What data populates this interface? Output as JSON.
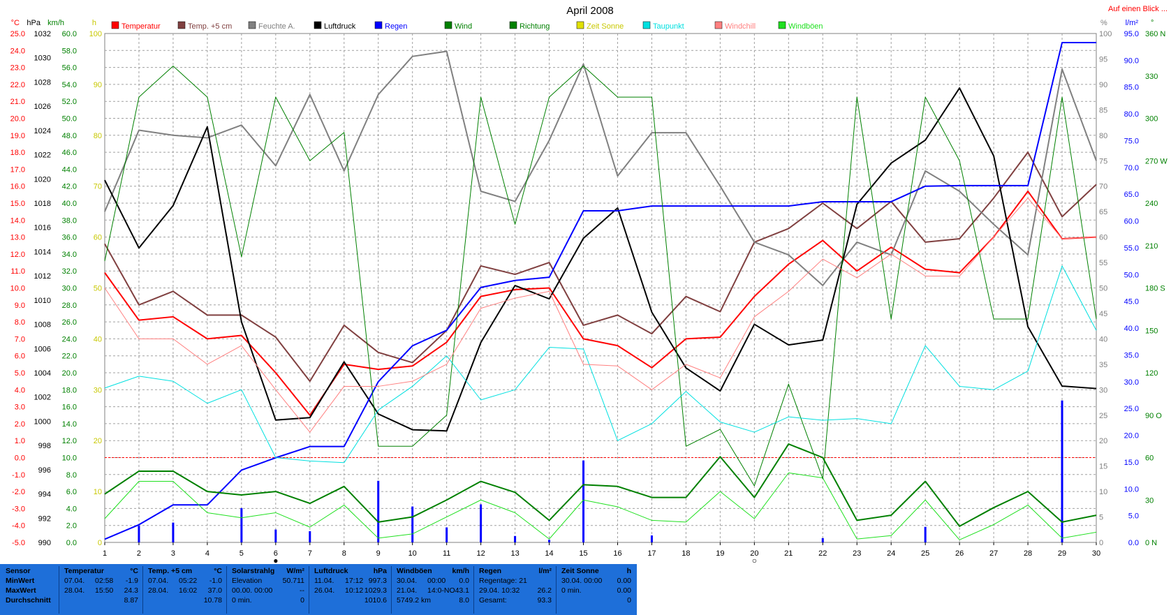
{
  "chart_data": {
    "type": "line",
    "title": "April 2008",
    "corner_link": "Auf einen Blick ...",
    "x": [
      1,
      2,
      3,
      4,
      5,
      6,
      7,
      8,
      9,
      10,
      11,
      12,
      13,
      14,
      15,
      16,
      17,
      18,
      19,
      20,
      21,
      22,
      23,
      24,
      25,
      26,
      27,
      28,
      29,
      30
    ],
    "axes": {
      "temp": {
        "unit": "°C",
        "color": "#ff0000",
        "ylim": [
          -5,
          25
        ],
        "ticks": [
          "25.0",
          "24.0",
          "23.0",
          "22.0",
          "21.0",
          "20.0",
          "19.0",
          "18.0",
          "17.0",
          "16.0",
          "15.0",
          "14.0",
          "13.0",
          "12.0",
          "11.0",
          "10.0",
          "9.0",
          "8.0",
          "7.0",
          "6.0",
          "5.0",
          "4.0",
          "3.0",
          "2.0",
          "1.0",
          "0.0",
          "-1.0",
          "-2.0",
          "-3.0",
          "-4.0",
          "-5.0"
        ]
      },
      "pressure": {
        "unit": "hPa",
        "color": "#000000",
        "ylim": [
          990,
          1032
        ],
        "ticks": [
          "1032",
          "1030",
          "1028",
          "1026",
          "1024",
          "1022",
          "1020",
          "1018",
          "1016",
          "1014",
          "1012",
          "1010",
          "1008",
          "1006",
          "1004",
          "1002",
          "1000",
          "998",
          "996",
          "994",
          "992",
          "990"
        ]
      },
      "wind": {
        "unit": "km/h",
        "color": "#008000",
        "ylim": [
          0,
          60
        ],
        "ticks": [
          "60.0",
          "58.0",
          "56.0",
          "54.0",
          "52.0",
          "50.0",
          "48.0",
          "46.0",
          "44.0",
          "42.0",
          "40.0",
          "38.0",
          "36.0",
          "34.0",
          "32.0",
          "30.0",
          "28.0",
          "26.0",
          "24.0",
          "22.0",
          "20.0",
          "18.0",
          "16.0",
          "14.0",
          "12.0",
          "10.0",
          "8.0",
          "6.0",
          "4.0",
          "2.0",
          "0.0"
        ]
      },
      "sun": {
        "unit": "h",
        "color": "#c8c800",
        "ylim": [
          0,
          100
        ],
        "ticks": [
          "100",
          "90",
          "80",
          "70",
          "60",
          "50",
          "40",
          "30",
          "20",
          "10",
          "0"
        ]
      },
      "humidity": {
        "unit": "%",
        "color": "#808080",
        "ylim": [
          0,
          100
        ],
        "ticks": [
          "100",
          "95",
          "90",
          "85",
          "80",
          "75",
          "70",
          "65",
          "60",
          "55",
          "50",
          "45",
          "40",
          "35",
          "30",
          "25",
          "20",
          "15",
          "10",
          "5",
          "0"
        ]
      },
      "rain": {
        "unit": "l/m²",
        "color": "#0000ff",
        "ylim": [
          0,
          95
        ],
        "ticks": [
          "95.0",
          "90.0",
          "85.0",
          "80.0",
          "75.0",
          "70.0",
          "65.0",
          "60.0",
          "55.0",
          "50.0",
          "45.0",
          "40.0",
          "35.0",
          "30.0",
          "25.0",
          "20.0",
          "15.0",
          "10.0",
          "5.0",
          "0.0"
        ]
      },
      "direction": {
        "unit": "°",
        "color": "#008000",
        "ylim": [
          0,
          360
        ],
        "ticks": [
          "360 N",
          "330",
          "300",
          "270 W",
          "240",
          "210",
          "180 S",
          "150",
          "120",
          "90 O",
          "60",
          "30",
          "0 N"
        ]
      }
    },
    "legend": [
      {
        "name": "Temperatur",
        "color": "#ff0000"
      },
      {
        "name": "Temp. +5 cm",
        "color": "#804040"
      },
      {
        "name": "Feuchte A.",
        "color": "#808080"
      },
      {
        "name": "Luftdruck",
        "color": "#000000"
      },
      {
        "name": "Regen",
        "color": "#0000ff"
      },
      {
        "name": "Wind",
        "color": "#008000"
      },
      {
        "name": "Richtung",
        "color": "#008000"
      },
      {
        "name": "Zeit Sonne",
        "color": "#e0e000"
      },
      {
        "name": "Taupunkt",
        "color": "#00e0e0"
      },
      {
        "name": "Windchill",
        "color": "#ff8080"
      },
      {
        "name": "Windböen",
        "color": "#20e020"
      }
    ],
    "series": [
      {
        "name": "Temperatur",
        "axis": "temp",
        "color": "#ff0000",
        "width": 2,
        "values": [
          10.9,
          8.1,
          8.3,
          7.0,
          7.2,
          5.0,
          2.5,
          5.5,
          5.2,
          5.4,
          6.8,
          9.5,
          9.9,
          10.0,
          7.0,
          6.6,
          5.3,
          7.0,
          7.1,
          9.5,
          11.4,
          12.8,
          11.0,
          12.4,
          11.1,
          10.9,
          13.0,
          15.7,
          12.9,
          13.0
        ]
      },
      {
        "name": "Temp. +5 cm",
        "axis": "temp",
        "color": "#804040",
        "width": 2,
        "values": [
          12.6,
          9.0,
          9.8,
          8.4,
          8.4,
          7.1,
          4.5,
          7.8,
          6.2,
          5.6,
          7.5,
          11.3,
          10.8,
          11.5,
          7.8,
          8.4,
          7.3,
          9.5,
          8.6,
          12.7,
          13.5,
          15.0,
          13.5,
          15.1,
          12.7,
          12.9,
          15.3,
          18.0,
          14.2,
          16.1
        ]
      },
      {
        "name": "Feuchte A.",
        "axis": "humidity",
        "color": "#808080",
        "width": 2,
        "values": [
          65,
          81,
          80,
          79.5,
          82,
          74,
          88,
          73,
          88,
          95.5,
          96.5,
          69,
          67,
          79,
          94,
          72,
          80.5,
          80.5,
          70,
          59,
          56.5,
          50.5,
          59,
          56.5,
          73,
          69,
          62.5,
          56.5,
          93,
          75
        ]
      },
      {
        "name": "Luftdruck",
        "axis": "pressure",
        "color": "#000000",
        "width": 2,
        "values": [
          1019.9,
          1014.3,
          1017.8,
          1024.3,
          1008.2,
          1000.1,
          1000.3,
          1004.9,
          1000.6,
          999.3,
          999.2,
          1006.5,
          1011.2,
          1010.1,
          1015.1,
          1017.6,
          1009.0,
          1004.4,
          1002.5,
          1008.0,
          1006.3,
          1006.7,
          1017.9,
          1021.3,
          1023.2,
          1027.5,
          1021.9,
          1007.8,
          1002.9,
          1002.7
        ]
      },
      {
        "name": "Regen",
        "axis": "rain",
        "color": "#0000ff",
        "width": 2,
        "values": [
          0.6,
          3.3,
          7.0,
          7.0,
          13.5,
          15.8,
          17.9,
          17.9,
          30.0,
          36.7,
          39.6,
          47.6,
          48.9,
          49.5,
          61.9,
          61.9,
          62.8,
          62.8,
          62.8,
          62.8,
          62.8,
          63.6,
          63.6,
          63.6,
          66.5,
          66.6,
          66.6,
          66.6,
          93.3,
          93.3
        ]
      },
      {
        "name": "Windböen",
        "axis": "wind",
        "color": "#20e020",
        "width": 1,
        "values": [
          2.8,
          7.2,
          7.2,
          3.5,
          2.9,
          3.5,
          1.8,
          4.4,
          0.5,
          1.0,
          3.0,
          5.0,
          3.5,
          0.4,
          5.0,
          4.2,
          2.6,
          2.4,
          6.0,
          2.8,
          8.2,
          7.6,
          0.4,
          0.8,
          5.0,
          0.3,
          2.1,
          4.4,
          0.5,
          1.2
        ]
      },
      {
        "name": "Wind",
        "axis": "wind",
        "color": "#008000",
        "width": 2,
        "values": [
          5.7,
          8.4,
          8.4,
          6.0,
          5.6,
          6.0,
          4.6,
          6.6,
          2.4,
          3.0,
          5.0,
          7.2,
          5.9,
          2.6,
          6.8,
          6.6,
          5.3,
          5.3,
          10.1,
          5.3,
          11.6,
          10.0,
          2.6,
          3.2,
          7.2,
          1.9,
          4.1,
          6.0,
          2.4,
          3.2
        ]
      },
      {
        "name": "Richtung",
        "axis": "direction",
        "color": "#008000",
        "width": 1,
        "values": [
          199,
          315,
          337,
          315,
          202,
          315,
          270,
          290,
          68,
          68,
          90,
          315,
          225,
          315,
          337,
          315,
          315,
          68,
          80,
          40,
          112,
          45,
          315,
          158,
          315,
          270,
          158,
          158,
          315,
          158
        ]
      },
      {
        "name": "Taupunkt",
        "axis": "temp",
        "color": "#00e0e0",
        "width": 1,
        "values": [
          4.1,
          4.8,
          4.5,
          3.2,
          4.0,
          0.0,
          -0.2,
          -0.3,
          2.8,
          4.2,
          6.0,
          3.4,
          4.0,
          6.5,
          6.4,
          1.0,
          2.0,
          3.9,
          2.1,
          1.5,
          2.4,
          2.2,
          2.3,
          2.0,
          6.6,
          4.2,
          4.0,
          5.1,
          11.3,
          7.5
        ]
      },
      {
        "name": "Windchill",
        "axis": "temp",
        "color": "#ff8080",
        "width": 1,
        "values": [
          10.0,
          7.0,
          7.0,
          5.5,
          6.6,
          4.0,
          1.5,
          4.2,
          4.2,
          4.5,
          5.5,
          8.8,
          9.4,
          9.8,
          5.5,
          5.4,
          4.0,
          5.5,
          4.7,
          8.3,
          9.8,
          11.7,
          10.6,
          12.0,
          10.7,
          10.7,
          13.0,
          15.3,
          12.9,
          13.0
        ]
      }
    ],
    "rain_bars": {
      "axis": "rain",
      "color": "#0000ff",
      "values": [
        0,
        3.1,
        3.7,
        0,
        6.4,
        2.4,
        2.1,
        0,
        11.5,
        6.7,
        2.8,
        7.1,
        1.2,
        0.5,
        15.3,
        0,
        1.3,
        0,
        0,
        0,
        0,
        0.8,
        0,
        0,
        2.9,
        0,
        0,
        0,
        26.5,
        0
      ]
    },
    "frost_line": {
      "axis": "temp",
      "value": 0,
      "color": "#ff0000"
    },
    "moon_phases": [
      {
        "day": 6,
        "symbol": "●"
      },
      {
        "day": 20,
        "symbol": "○"
      }
    ]
  },
  "stats": {
    "sensor": {
      "title": "Sensor",
      "rows": [
        "MinWert",
        "MaxWert",
        "Durchschnitt"
      ]
    },
    "temperatur": {
      "title": "Temperatur",
      "unit": "°C",
      "rows": [
        {
          "date": "07.04.",
          "time": "02:58",
          "value": "-1.9"
        },
        {
          "date": "28.04.",
          "time": "15:50",
          "value": "24.3"
        },
        {
          "date": "",
          "time": "",
          "value": "8.87"
        }
      ]
    },
    "temp5": {
      "title": "Temp. +5 cm",
      "unit": "°C",
      "rows": [
        {
          "date": "07.04.",
          "time": "05:22",
          "value": "-1.0"
        },
        {
          "date": "28.04.",
          "time": "16:02",
          "value": "37.0"
        },
        {
          "date": "",
          "time": "",
          "value": "10.78"
        }
      ]
    },
    "solar": {
      "title": "Solarstrahlg",
      "unit": "W/m²",
      "rows": [
        {
          "label": "Elevation",
          "value": "50.711"
        },
        {
          "label": "00.00.  00:00",
          "value": "--"
        },
        {
          "label": "0 min.",
          "value": "0"
        }
      ]
    },
    "luftdruck": {
      "title": "Luftdruck",
      "unit": "hPa",
      "rows": [
        {
          "date": "11.04.",
          "time": "17:12",
          "value": "997.3"
        },
        {
          "date": "26.04.",
          "time": "10:12",
          "value": "1029.3"
        },
        {
          "date": "",
          "time": "",
          "value": "1010.6"
        }
      ]
    },
    "windboeen": {
      "title": "Windböen",
      "unit": "km/h",
      "rows": [
        {
          "date": "30.04.",
          "time": "00:00",
          "value": "0.0"
        },
        {
          "date": "21.04.",
          "time": "14:0-NO",
          "value": "43.1"
        },
        {
          "date": "5749.2 km",
          "time": "",
          "value": "8.0"
        }
      ]
    },
    "regen": {
      "title": "Regen",
      "unit": "l/m²",
      "rows": [
        {
          "label": "Regentage: 21",
          "value": ""
        },
        {
          "label": "29.04.  10:32",
          "value": "26.2"
        },
        {
          "label": "Gesamt:",
          "value": "93.3"
        }
      ]
    },
    "sonne": {
      "title": "Zeit Sonne",
      "unit": "h",
      "rows": [
        {
          "label": "30.04.  00:00",
          "value": "0.00"
        },
        {
          "label": "0 min.",
          "value": "0.00"
        },
        {
          "label": "",
          "value": "0"
        }
      ]
    }
  }
}
